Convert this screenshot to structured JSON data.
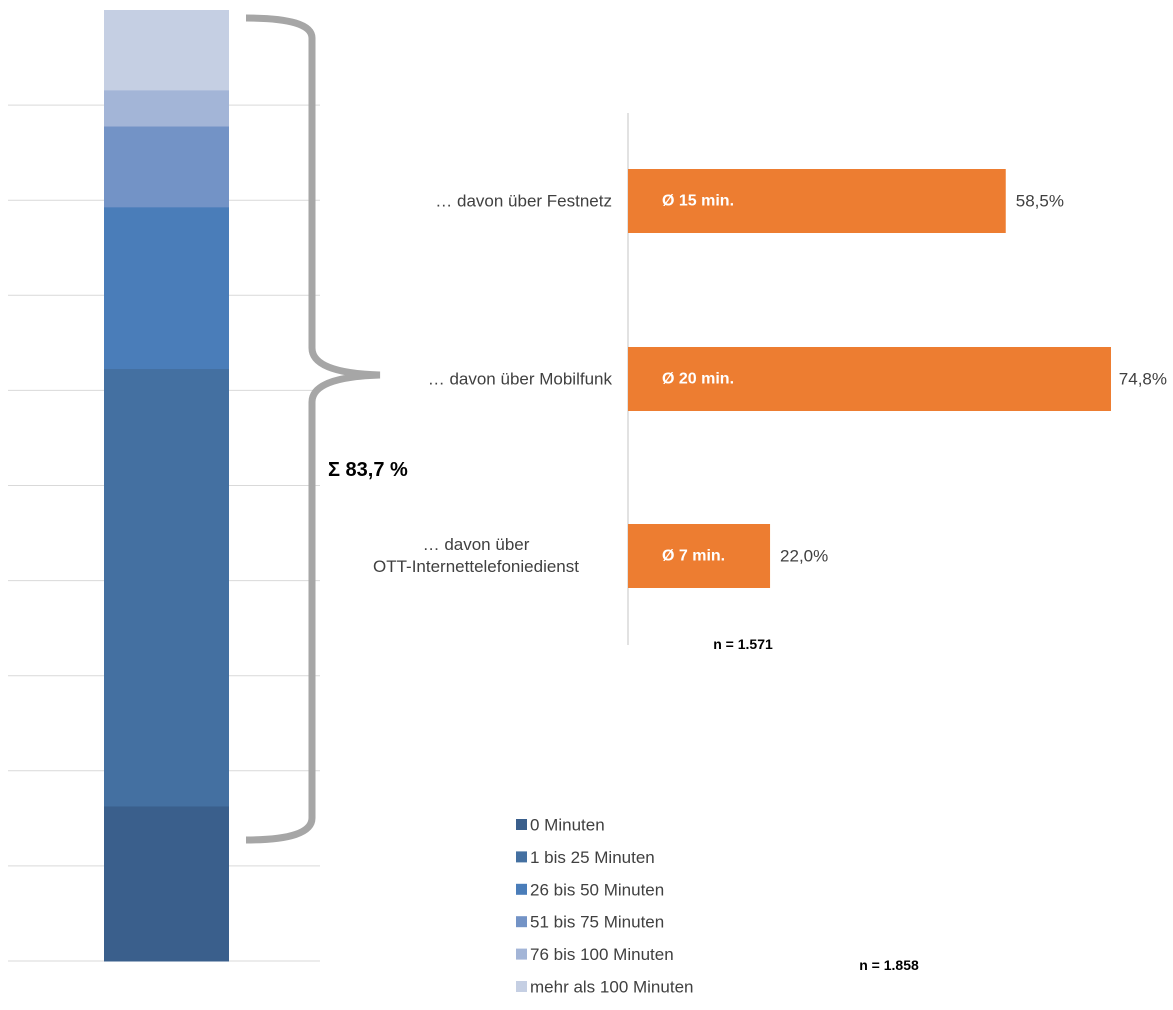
{
  "chart_data": [
    {
      "type": "bar",
      "orientation": "stacked-vertical",
      "categories": [
        ""
      ],
      "series": [
        {
          "name": "0 Minuten",
          "values": [
            16.3
          ],
          "color": "#3a5f8c"
        },
        {
          "name": "1 bis 25 Minuten",
          "values": [
            46.0
          ],
          "color": "#4470a1"
        },
        {
          "name": "26 bis 50 Minuten",
          "values": [
            17.0
          ],
          "color": "#4a7db9"
        },
        {
          "name": "51 bis 75 Minuten",
          "values": [
            8.5
          ],
          "color": "#7393c6"
        },
        {
          "name": "76 bis 100 Minuten",
          "values": [
            3.8
          ],
          "color": "#a3b5d7"
        },
        {
          "name": "mehr als 100 Minuten",
          "values": [
            8.4
          ],
          "color": "#c5cfe3"
        }
      ],
      "ylim": [
        0,
        100
      ],
      "grid": true,
      "legend": "bottom-right",
      "annotation": "Σ 83,7 %",
      "n_label": "n = 1.858"
    },
    {
      "type": "bar",
      "orientation": "horizontal",
      "categories": [
        "… davon über Festnetz",
        "… davon über Mobilfunk",
        "… davon über OTT-Internettelefoniedienst"
      ],
      "values": [
        58.5,
        74.8,
        22.0
      ],
      "value_labels": [
        "58,5%",
        "74,8%",
        "22,0%"
      ],
      "bar_labels": [
        "Ø 15 min.",
        "Ø 20 min.",
        "Ø 7 min."
      ],
      "color": "#ed7d31",
      "xlim": [
        0,
        74.8
      ],
      "n_label": "n = 1.571"
    }
  ]
}
